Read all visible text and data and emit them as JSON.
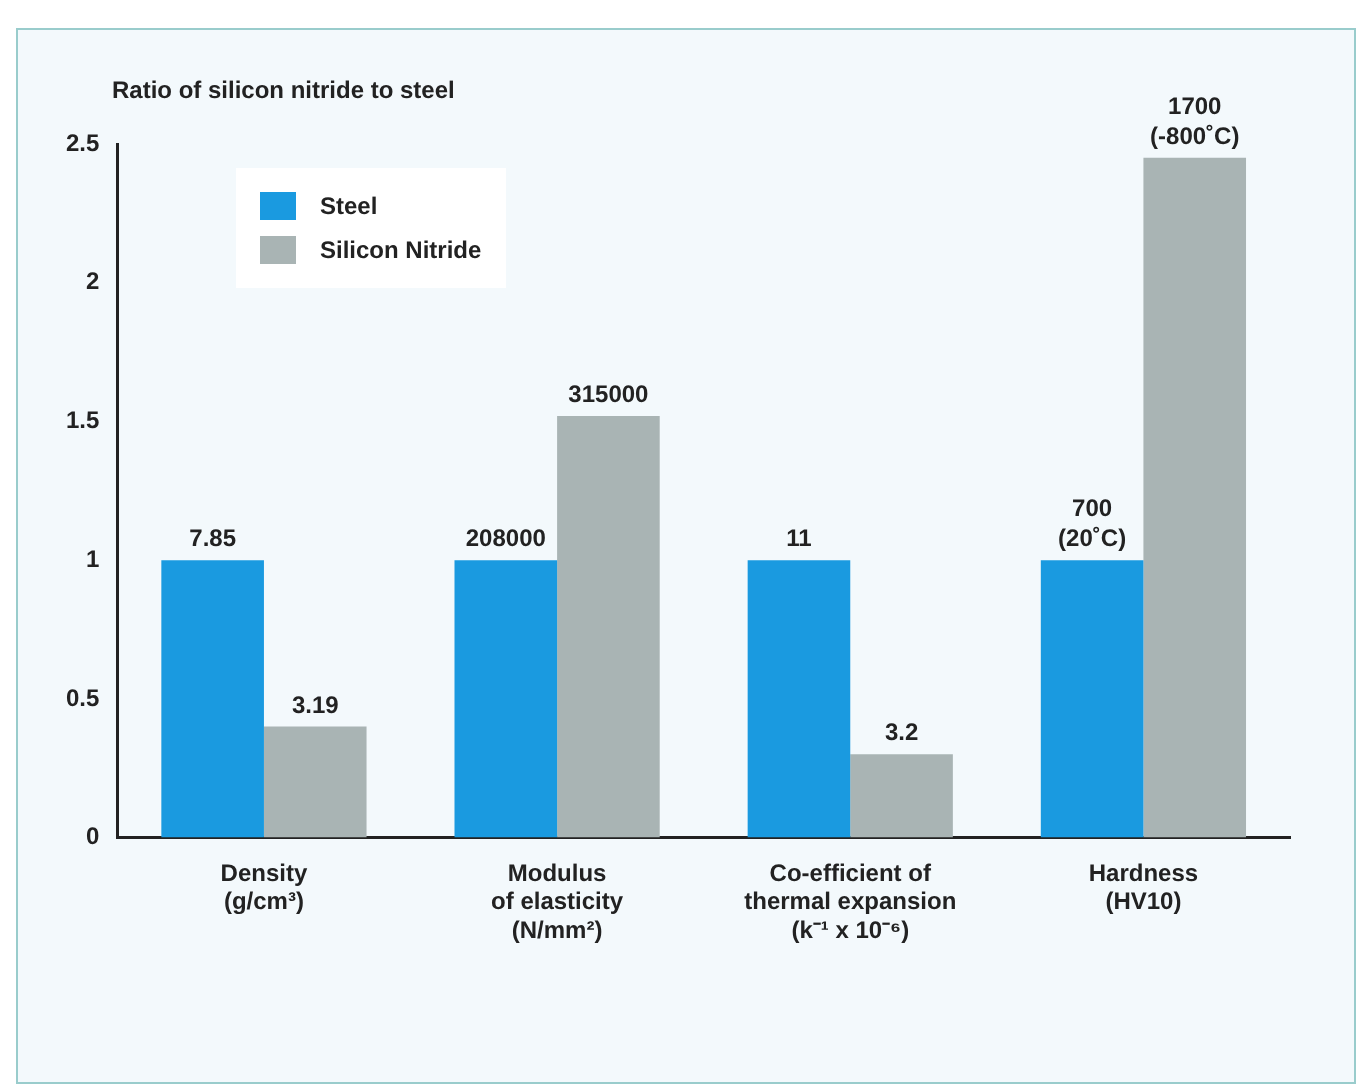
{
  "chart_data": {
    "type": "bar",
    "ylabel": "Ratio of silicon nitride to steel",
    "categories": [
      "Density\n(g/cm³)",
      "Modulus\nof elasticity\n(N/mm²)",
      "Co-efficient of\nthermal expansion\n(k⁻¹ x 10⁻⁶)",
      "Hardness\n(HV10)"
    ],
    "series": [
      {
        "name": "Steel",
        "color": "#1a9ae0",
        "values": [
          1,
          1,
          1,
          1
        ]
      },
      {
        "name": "Silicon Nitride",
        "color": "#a9b4b4",
        "values": [
          0.4,
          1.52,
          0.3,
          2.45
        ]
      }
    ],
    "annotations": [
      {
        "text": "7.85",
        "x": "Density\n(g/cm³)",
        "y": 1
      },
      {
        "text": "208000",
        "x": "Modulus\nof elasticity\n(N/mm²)",
        "y": 1
      },
      {
        "text": "11",
        "x": "Co-efficient of\nthermal expansion\n(k⁻¹ x 10⁻⁶)",
        "y": 1
      },
      {
        "text": "700\n(20˚C)",
        "x": "Hardness\n(HV10)",
        "y": 1
      },
      {
        "text": "3.19",
        "x": "Density\n(g/cm³)",
        "y": 0.4
      },
      {
        "text": "315000",
        "x": "Modulus\nof elasticity\n(N/mm²)",
        "y": 1.52
      },
      {
        "text": "3.2",
        "x": "Co-efficient of\nthermal expansion\n(k⁻¹ x 10⁻⁶)",
        "y": 0.3
      },
      {
        "text": "1700\n(-800˚C)",
        "x": "Hardness\n(HV10)",
        "y": 2.45
      }
    ],
    "ylim": [
      0,
      2.5
    ],
    "yticks": [
      0,
      0.5,
      1,
      1.5,
      2,
      2.5
    ],
    "grid": false,
    "legend": "top left"
  }
}
